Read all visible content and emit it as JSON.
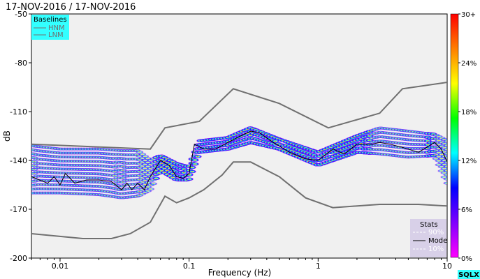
{
  "chart_data": {
    "type": "heatmap",
    "title": "17-NOV-2016 / 17-NOV-2016",
    "xlabel": "Frequency (Hz)",
    "ylabel": "dB",
    "xscale": "log",
    "xlim": [
      0.006,
      10
    ],
    "ylim": [
      -200,
      -50
    ],
    "xticks": [
      {
        "value": 0.01,
        "label": "0.01"
      },
      {
        "value": 0.1,
        "label": "0.1"
      },
      {
        "value": 1,
        "label": "1"
      },
      {
        "value": 10,
        "label": "10"
      }
    ],
    "yticks": [
      -50,
      -80,
      -110,
      -140,
      -170,
      -200
    ],
    "colorbar": {
      "ticks": [
        "30+",
        "24%",
        "18%",
        "12%",
        "6%",
        "0%"
      ],
      "stops": [
        "#ff00ff",
        "#7f00ff",
        "#0000ff",
        "#00ffff",
        "#00ff00",
        "#ffff00",
        "#ff7f00",
        "#ff0000"
      ]
    },
    "baselines_legend": {
      "title": "Baselines",
      "items": [
        {
          "name": "HNM",
          "color": "#606060"
        },
        {
          "name": "LNM",
          "color": "#606060"
        }
      ],
      "placement": "top-left"
    },
    "stats_legend": {
      "title": "Stats",
      "items": [
        "90%",
        "Mode",
        "10%"
      ],
      "placement": "bottom-right"
    },
    "hnm": [
      [
        0.006,
        -130
      ],
      [
        0.05,
        -133
      ],
      [
        0.065,
        -120
      ],
      [
        0.12,
        -116
      ],
      [
        0.22,
        -96
      ],
      [
        0.5,
        -105
      ],
      [
        1.2,
        -120
      ],
      [
        3,
        -111
      ],
      [
        4.5,
        -96
      ],
      [
        10,
        -92
      ]
    ],
    "lnm": [
      [
        0.006,
        -185
      ],
      [
        0.015,
        -188
      ],
      [
        0.025,
        -188
      ],
      [
        0.035,
        -185
      ],
      [
        0.05,
        -178
      ],
      [
        0.065,
        -162
      ],
      [
        0.08,
        -166
      ],
      [
        0.1,
        -163
      ],
      [
        0.13,
        -158
      ],
      [
        0.18,
        -149
      ],
      [
        0.22,
        -141
      ],
      [
        0.3,
        -141
      ],
      [
        0.5,
        -150
      ],
      [
        0.8,
        -163
      ],
      [
        1.3,
        -169
      ],
      [
        3,
        -167
      ],
      [
        6,
        -167
      ],
      [
        10,
        -168
      ]
    ],
    "mode": [
      [
        0.006,
        -150
      ],
      [
        0.008,
        -154
      ],
      [
        0.009,
        -150
      ],
      [
        0.01,
        -155
      ],
      [
        0.011,
        -148
      ],
      [
        0.013,
        -154
      ],
      [
        0.016,
        -152
      ],
      [
        0.02,
        -152
      ],
      [
        0.025,
        -153
      ],
      [
        0.03,
        -158
      ],
      [
        0.033,
        -154
      ],
      [
        0.036,
        -158
      ],
      [
        0.04,
        -154
      ],
      [
        0.045,
        -158
      ],
      [
        0.05,
        -150
      ],
      [
        0.06,
        -140
      ],
      [
        0.07,
        -143
      ],
      [
        0.08,
        -150
      ],
      [
        0.09,
        -151
      ],
      [
        0.1,
        -148
      ],
      [
        0.11,
        -130
      ],
      [
        0.13,
        -133
      ],
      [
        0.16,
        -133
      ],
      [
        0.2,
        -129
      ],
      [
        0.25,
        -125
      ],
      [
        0.3,
        -122
      ],
      [
        0.35,
        -123
      ],
      [
        0.45,
        -129
      ],
      [
        0.6,
        -135
      ],
      [
        0.8,
        -139
      ],
      [
        1,
        -140
      ],
      [
        1.3,
        -133
      ],
      [
        1.6,
        -136
      ],
      [
        2,
        -130
      ],
      [
        2.6,
        -130
      ],
      [
        3,
        -129
      ],
      [
        3.6,
        -130
      ],
      [
        4.5,
        -132
      ],
      [
        6,
        -135
      ],
      [
        8,
        -129
      ],
      [
        9,
        -133
      ],
      [
        10,
        -141
      ]
    ],
    "psd_density": [
      {
        "f": 0.006,
        "db_range": [
          -160,
          -131
        ]
      },
      {
        "f": 0.01,
        "db_range": [
          -160,
          -133
        ]
      },
      {
        "f": 0.02,
        "db_range": [
          -161,
          -133
        ]
      },
      {
        "f": 0.03,
        "db_range": [
          -163,
          -134
        ]
      },
      {
        "f": 0.04,
        "db_range": [
          -162,
          -134
        ]
      },
      {
        "f": 0.05,
        "db_range": [
          -158,
          -140
        ]
      },
      {
        "f": 0.06,
        "db_range": [
          -146,
          -137
        ]
      },
      {
        "f": 0.08,
        "db_range": [
          -152,
          -142
        ]
      },
      {
        "f": 0.1,
        "db_range": [
          -152,
          -144
        ]
      },
      {
        "f": 0.12,
        "db_range": [
          -135,
          -128
        ]
      },
      {
        "f": 0.2,
        "db_range": [
          -133,
          -126
        ]
      },
      {
        "f": 0.3,
        "db_range": [
          -129,
          -120
        ]
      },
      {
        "f": 0.5,
        "db_range": [
          -133,
          -127
        ]
      },
      {
        "f": 1,
        "db_range": [
          -143,
          -135
        ]
      },
      {
        "f": 2,
        "db_range": [
          -135,
          -125
        ]
      },
      {
        "f": 3,
        "db_range": [
          -136,
          -120
        ]
      },
      {
        "f": 5,
        "db_range": [
          -138,
          -122
        ]
      },
      {
        "f": 8,
        "db_range": [
          -137,
          -124
        ]
      },
      {
        "f": 10,
        "db_range": [
          -154,
          -128
        ]
      }
    ]
  },
  "badge": "SQLX"
}
